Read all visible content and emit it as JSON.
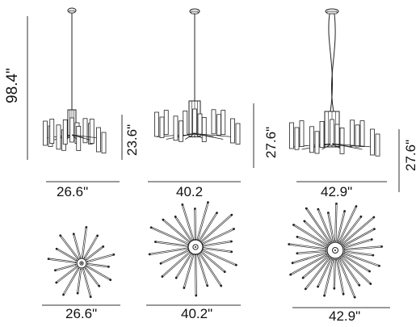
{
  "diagram": {
    "front_views": [
      {
        "id": "small",
        "width_label": "26.6\"",
        "height_label": "23.6\""
      },
      {
        "id": "medium",
        "width_label": "40.2",
        "height_label": "27.6\""
      },
      {
        "id": "large",
        "width_label": "42.9\"",
        "height_label": "27.6\""
      }
    ],
    "overall_height_label": "98.4\"",
    "top_views": [
      {
        "id": "small",
        "width_label": "26.6\""
      },
      {
        "id": "medium",
        "width_label": "40.2\""
      },
      {
        "id": "large",
        "width_label": "42.9\""
      }
    ],
    "line_color": "#222222"
  }
}
